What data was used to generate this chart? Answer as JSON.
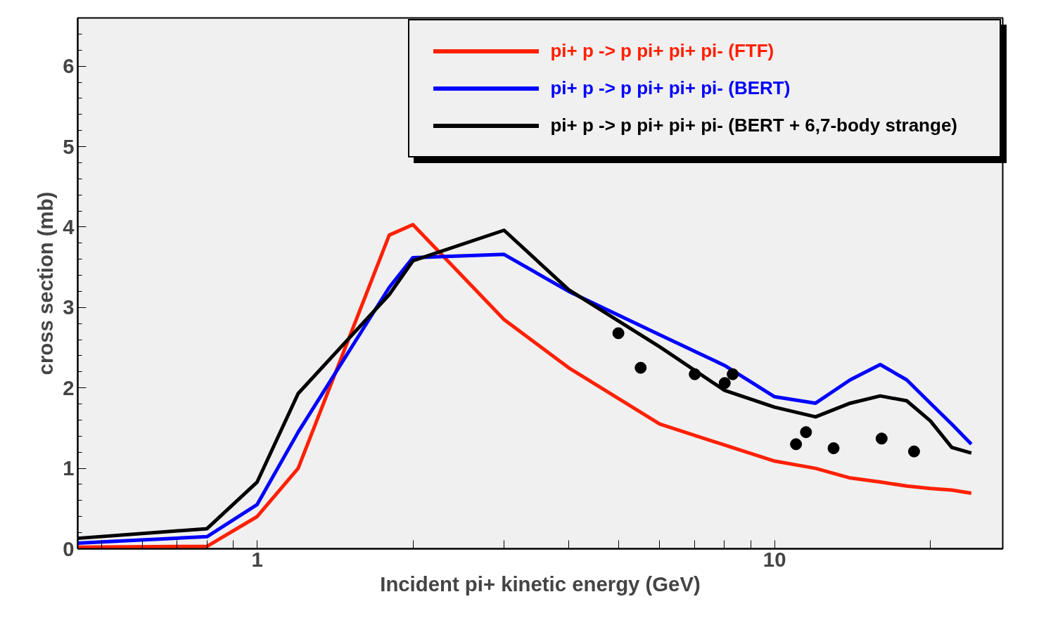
{
  "chart_data": {
    "type": "line",
    "xlabel": "Incident pi+ kinetic energy (GeV)",
    "ylabel": "cross section (mb)",
    "log": "x",
    "xlim": [
      0.45,
      27.6
    ],
    "ylim": [
      0,
      6.6
    ],
    "xticks": [
      {
        "value": 0.5,
        "label": null
      },
      {
        "value": 0.6,
        "label": null
      },
      {
        "value": 0.7,
        "label": null
      },
      {
        "value": 0.8,
        "label": null
      },
      {
        "value": 0.9,
        "label": null
      },
      1,
      {
        "value": 2,
        "label": null
      },
      {
        "value": 3,
        "label": null
      },
      {
        "value": 4,
        "label": null
      },
      {
        "value": 5,
        "label": null
      },
      {
        "value": 6,
        "label": null
      },
      {
        "value": 7,
        "label": null
      },
      {
        "value": 8,
        "label": null
      },
      {
        "value": 9,
        "label": null
      },
      10,
      {
        "value": 20,
        "label": null
      }
    ],
    "yticks": [
      0,
      1,
      2,
      3,
      4,
      5,
      6
    ],
    "grid": false,
    "legend": "top right",
    "line_style": "solid",
    "marker": "none",
    "series": [
      {
        "name": "pi+ p -> p pi+ pi+ pi- (FTF)",
        "color": "#ff2000",
        "x": [
          0.45,
          0.8,
          1.0,
          1.2,
          1.8,
          2.0,
          3.0,
          4.0,
          6.0,
          8.0,
          10,
          12,
          14,
          16,
          18,
          20,
          22,
          24
        ],
        "values": [
          0.02,
          0.03,
          0.4,
          1.0,
          3.9,
          4.03,
          2.85,
          2.25,
          1.55,
          1.29,
          1.09,
          1.0,
          0.88,
          0.83,
          0.78,
          0.75,
          0.73,
          0.69
        ]
      },
      {
        "name": "pi+ p -> p pi+ pi+ pi- (BERT)",
        "color": "#0000ff",
        "x": [
          0.45,
          0.8,
          1.0,
          1.2,
          1.8,
          2.0,
          3.0,
          4.0,
          6.0,
          8.0,
          10,
          12,
          14,
          16,
          18,
          20,
          22,
          24
        ],
        "values": [
          0.07,
          0.15,
          0.55,
          1.45,
          3.25,
          3.62,
          3.66,
          3.2,
          2.66,
          2.28,
          1.89,
          1.81,
          2.1,
          2.29,
          2.1,
          1.81,
          1.55,
          1.3
        ]
      },
      {
        "name": "pi+ p -> p pi+ pi+ pi- (BERT + 6,7-body strange)",
        "color": "#000000",
        "x": [
          0.45,
          0.8,
          1.0,
          1.2,
          1.8,
          2.0,
          3.0,
          4.0,
          6.0,
          8.0,
          10,
          12,
          14,
          16,
          18,
          20,
          22,
          24
        ],
        "values": [
          0.13,
          0.25,
          0.83,
          1.93,
          3.16,
          3.58,
          3.96,
          3.22,
          2.51,
          1.97,
          1.76,
          1.64,
          1.81,
          1.9,
          1.84,
          1.59,
          1.26,
          1.19
        ]
      },
      {
        "type": "scatter",
        "marker": "circle",
        "color": "#000000",
        "x": [
          4.99,
          5.51,
          7.01,
          8.01,
          8.3,
          11.0,
          11.5,
          13.0,
          16.1,
          18.6
        ],
        "values": [
          2.68,
          2.25,
          2.17,
          2.06,
          2.17,
          1.3,
          1.45,
          1.25,
          1.37,
          1.21
        ]
      }
    ]
  }
}
